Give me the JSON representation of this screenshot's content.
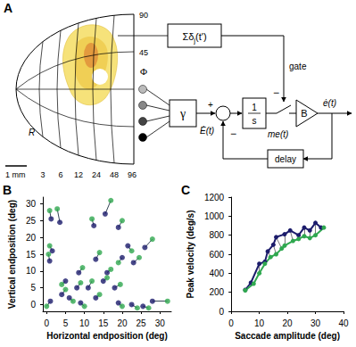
{
  "diagram": {
    "label": "A",
    "map": {
      "phi_label": "Φ",
      "phi_ticks": [
        "90",
        "45"
      ],
      "r_label": "R",
      "r_ticks": [
        "3",
        "6",
        "12",
        "24",
        "48",
        "96"
      ],
      "scale_bar": "1 mm"
    },
    "gate_input": {
      "symbol": "Σδ",
      "subscript": "j",
      "argument": "(t')"
    },
    "gate_label": "gate",
    "gate_sign": "−",
    "gain": "γ",
    "velocity_input": "Ė(t)",
    "sum_sign": "+",
    "feedback_sign": "−",
    "integrator": {
      "numerator": "1",
      "denominator": "s"
    },
    "motor_error": "me(t)",
    "burst": "B",
    "output": "ė(t)",
    "delay": "delay"
  },
  "chart_data": [
    {
      "type": "scatter",
      "label": "B",
      "x_label": "Horizontal endposition (deg)",
      "y_label": "Vertical endposition (deg)",
      "xlim": [
        -1,
        33
      ],
      "ylim": [
        -2,
        32
      ],
      "xticks": [
        0,
        5,
        10,
        15,
        20,
        25,
        30
      ],
      "yticks": [
        0,
        5,
        10,
        15,
        20,
        25,
        30
      ],
      "grid": false,
      "marker": "circle",
      "series": [
        {
          "color": "#1c1c6b",
          "x": [
            1.2,
            3.5,
            1.5,
            0.8,
            15.5,
            12.5,
            19,
            21.5,
            26,
            13,
            20,
            23,
            16,
            15,
            8.5,
            5,
            4,
            8,
            11,
            13,
            9,
            19,
            22.5,
            25.5,
            28,
            1,
            18,
            6
          ],
          "values": [
            25.5,
            24.5,
            16,
            13,
            27,
            23.5,
            23,
            17.5,
            17,
            13.5,
            14,
            12.5,
            9.5,
            7,
            9.5,
            7,
            3,
            5,
            5,
            2,
            0.5,
            0.5,
            0,
            -0.5,
            1,
            1,
            5,
            2
          ]
        },
        {
          "color": "#2fa84f",
          "x": [
            0.8,
            2.8,
            0.8,
            0.5,
            17,
            12,
            20,
            22.5,
            28,
            14,
            19,
            24.5,
            17,
            16,
            9.5,
            4,
            5,
            9,
            12,
            14,
            10,
            20,
            24,
            27,
            32,
            0,
            19.5,
            7
          ],
          "values": [
            28,
            28.5,
            17.5,
            15,
            31,
            25.5,
            25,
            16,
            19.5,
            15.5,
            12.5,
            14,
            10.5,
            8,
            11,
            6,
            4.5,
            6.5,
            7,
            3,
            -0.5,
            -0.5,
            -1,
            -1,
            1,
            -0.5,
            6,
            1
          ]
        }
      ]
    },
    {
      "type": "line",
      "label": "C",
      "x_label": "Saccade amplitude (deg)",
      "y_label": "Peak velocity (deg/s)",
      "xlim": [
        0,
        40
      ],
      "ylim": [
        0,
        1200
      ],
      "xticks": [
        0,
        10,
        20,
        30,
        40
      ],
      "yticks": [
        0,
        200,
        400,
        600,
        800,
        1000,
        1200
      ],
      "grid": false,
      "marker": "circle",
      "series": [
        {
          "color": "#1c1c6b",
          "x": [
            5,
            7,
            10,
            12,
            13,
            15,
            16,
            19,
            21,
            24,
            26,
            28,
            30,
            32
          ],
          "values": [
            225,
            300,
            500,
            520,
            630,
            700,
            780,
            810,
            850,
            800,
            880,
            850,
            930,
            880
          ]
        },
        {
          "color": "#2fa84f",
          "x": [
            5,
            8,
            10,
            12,
            14,
            16,
            18,
            19,
            22,
            24,
            26,
            28,
            30,
            33
          ],
          "values": [
            220,
            290,
            400,
            500,
            570,
            600,
            660,
            690,
            740,
            760,
            790,
            770,
            800,
            880
          ]
        }
      ]
    }
  ]
}
